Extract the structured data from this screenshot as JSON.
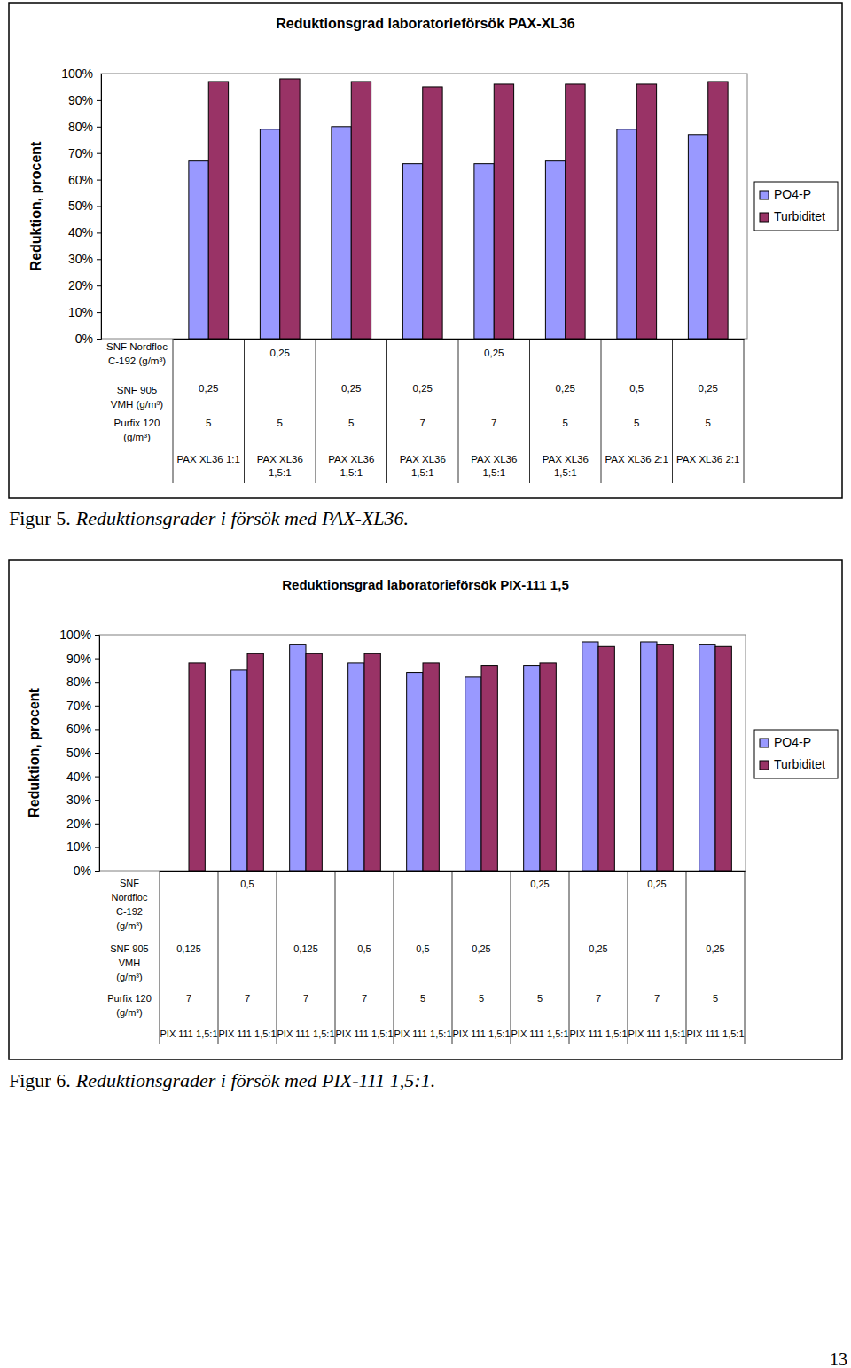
{
  "chart_data": [
    {
      "type": "bar",
      "title": "Reduktionsgrad laboratorieförsök PAX-XL36",
      "y_label": "Reduktion, procent",
      "categories": [
        "PAX XL36 1:1",
        "PAX XL36\n1,5:1",
        "PAX XL36\n1,5:1",
        "PAX XL36\n1,5:1",
        "PAX XL36\n1,5:1",
        "PAX XL36\n1,5:1",
        "PAX XL36 2:1",
        "PAX XL36 2:1"
      ],
      "category_rows": [
        {
          "label": "SNF Nordfloc\nC-192 (g/m³)",
          "values": [
            null,
            "0,25",
            null,
            null,
            "0,25",
            null,
            null,
            null
          ]
        },
        {
          "label": "SNF 905\nVMH (g/m³)",
          "values": [
            "0,25",
            null,
            "0,25",
            "0,25",
            null,
            "0,25",
            "0,5",
            "0,25"
          ]
        },
        {
          "label": "Purfix 120\n(g/m³)",
          "values": [
            "5",
            "5",
            "5",
            "7",
            "7",
            "5",
            "5",
            "5"
          ]
        }
      ],
      "series": [
        {
          "name": "PO4-P",
          "color": "#9999FF",
          "values": [
            67,
            79,
            80,
            66,
            66,
            67,
            79,
            77
          ]
        },
        {
          "name": "Turbiditet",
          "color": "#993366",
          "values": [
            97,
            98,
            97,
            95,
            96,
            96,
            96,
            97
          ]
        }
      ],
      "ylim": [
        0,
        100
      ],
      "yticks": [
        {
          "value": 0,
          "label": "0%"
        },
        {
          "value": 10,
          "label": "10%"
        },
        {
          "value": 20,
          "label": "20%"
        },
        {
          "value": 30,
          "label": "30%"
        },
        {
          "value": 40,
          "label": "40%"
        },
        {
          "value": 50,
          "label": "50%"
        },
        {
          "value": 60,
          "label": "60%"
        },
        {
          "value": 70,
          "label": "70%"
        },
        {
          "value": 80,
          "label": "80%"
        },
        {
          "value": 90,
          "label": "90%"
        },
        {
          "value": 100,
          "label": "100%"
        }
      ],
      "grid": false,
      "legend": "right"
    },
    {
      "type": "bar",
      "title": "Reduktionsgrad laboratorieförsök PIX-111 1,5",
      "y_label": "Reduktion, procent",
      "categories": [
        "PIX 111 1,5:1",
        "PIX 111 1,5:1",
        "PIX 111 1,5:1",
        "PIX 111 1,5:1",
        "PIX 111 1,5:1",
        "PIX 111 1,5:1",
        "PIX 111 1,5:1",
        "PIX 111 1,5:1",
        "PIX 111 1,5:1",
        "PIX 111 1,5:1"
      ],
      "category_rows": [
        {
          "label": "SNF\nNordfloc\nC-192\n(g/m³)",
          "values": [
            null,
            "0,5",
            null,
            null,
            null,
            null,
            "0,25",
            null,
            "0,25",
            null
          ]
        },
        {
          "label": "SNF 905\nVMH\n(g/m³)",
          "values": [
            "0,125",
            null,
            "0,125",
            "0,5",
            "0,5",
            "0,25",
            null,
            "0,25",
            null,
            "0,25"
          ]
        },
        {
          "label": "Purfix 120\n(g/m³)",
          "values": [
            "7",
            "7",
            "7",
            "7",
            "5",
            "5",
            "5",
            "7",
            "7",
            "5"
          ]
        }
      ],
      "series": [
        {
          "name": "PO4-P",
          "color": "#9999FF",
          "values": [
            null,
            85,
            96,
            88,
            84,
            82,
            87,
            97,
            97,
            96
          ]
        },
        {
          "name": "Turbiditet",
          "color": "#993366",
          "values": [
            88,
            92,
            92,
            92,
            88,
            87,
            88,
            95,
            96,
            95
          ]
        }
      ],
      "ylim": [
        0,
        100
      ],
      "yticks": [
        {
          "value": 0,
          "label": "0%"
        },
        {
          "value": 10,
          "label": "10%"
        },
        {
          "value": 20,
          "label": "20%"
        },
        {
          "value": 30,
          "label": "30%"
        },
        {
          "value": 40,
          "label": "40%"
        },
        {
          "value": 50,
          "label": "50%"
        },
        {
          "value": 60,
          "label": "60%"
        },
        {
          "value": 70,
          "label": "70%"
        },
        {
          "value": 80,
          "label": "80%"
        },
        {
          "value": 90,
          "label": "90%"
        },
        {
          "value": 100,
          "label": "100%"
        }
      ],
      "grid": false,
      "legend": "right"
    }
  ],
  "figure_captions": [
    {
      "label": "Figur 5.",
      "text": "Reduktionsgrader i försök med PAX-XL36."
    },
    {
      "label": "Figur 6.",
      "text": "Reduktionsgrader i försök med PIX-111 1,5:1."
    }
  ],
  "page_number": 13
}
